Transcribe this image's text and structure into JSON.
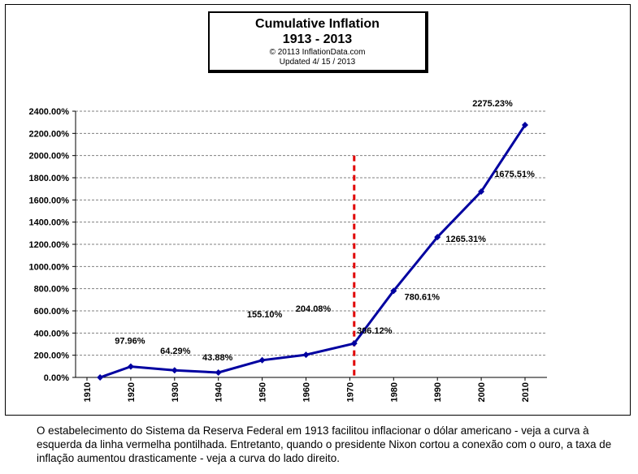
{
  "title": "Cumulative Inflation",
  "subtitle": "1913 - 2013",
  "copyright": "© 20113 InflationData.com",
  "updated": "Updated   4/ 15 / 2013",
  "caption": "O estabelecimento do Sistema da Reserva Federal em 1913 facilitou inflacionar o dólar americano - veja a curva à esquerda da linha vermelha pontilhada. Entretanto, quando o presidente Nixon cortou a conexão com o ouro, a taxa de inflação aumentou drasticamente - veja a curva do lado direito.",
  "colors": {
    "series": "#0000a0",
    "marker_line": "#e00000",
    "grid": "#808080"
  },
  "chart_data": {
    "type": "line",
    "title": "Cumulative Inflation",
    "subtitle": "1913 - 2013",
    "xlabel": "",
    "ylabel": "",
    "xlim": [
      1910,
      2010
    ],
    "ylim": [
      0,
      2400
    ],
    "x_ticks": [
      "1910",
      "1920",
      "1930",
      "1940",
      "1950",
      "1960",
      "1970",
      "1980",
      "1990",
      "2000",
      "2010"
    ],
    "y_ticks": [
      "0.00%",
      "200.00%",
      "400.00%",
      "600.00%",
      "800.00%",
      "1000.00%",
      "1200.00%",
      "1400.00%",
      "1600.00%",
      "1800.00%",
      "2000.00%",
      "2200.00%",
      "2400.00%"
    ],
    "grid": true,
    "vertical_marker": {
      "x": 1971,
      "style": "dashed",
      "color": "#e00000"
    },
    "series": [
      {
        "x": [
          1913,
          1920,
          1930,
          1940,
          1950,
          1960,
          1971,
          1980,
          1990,
          2000,
          2010
        ],
        "values": [
          0,
          97.96,
          64.29,
          43.88,
          155.1,
          204.08,
          306.12,
          780.61,
          1265.31,
          1675.51,
          2275.23
        ],
        "labels": [
          "",
          "97.96%",
          "64.29%",
          "43.88%",
          "155.10%",
          "204.08%",
          "306.12%",
          "780.61%",
          "1265.31%",
          "1675.51%",
          "2275.23%"
        ]
      }
    ]
  }
}
